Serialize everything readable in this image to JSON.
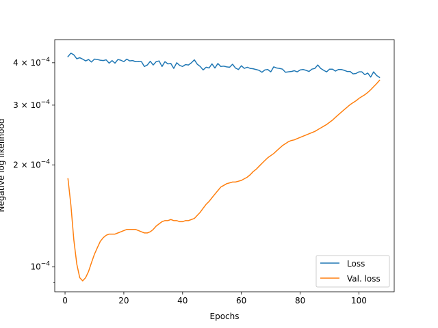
{
  "chart_data": {
    "type": "line",
    "xlabel": "Epochs",
    "ylabel": "Negative log likelihood",
    "xlim": [
      -3.5,
      112
    ],
    "ylim": [
      8.45e-05,
      0.000468
    ],
    "yscale": "log",
    "xticks": [
      0,
      20,
      40,
      60,
      80,
      100
    ],
    "yticks": [
      {
        "value": 0.0001,
        "mantissa": "10",
        "exponent": "−4",
        "prefix": ""
      },
      {
        "value": 0.0002,
        "mantissa": "10",
        "exponent": "−4",
        "prefix": "2 × "
      },
      {
        "value": 0.0003,
        "mantissa": "10",
        "exponent": "−4",
        "prefix": "3 × "
      },
      {
        "value": 0.0004,
        "mantissa": "10",
        "exponent": "−4",
        "prefix": "4 × "
      }
    ],
    "minor_yticks": [
      9e-05
    ],
    "grid": false,
    "legend_position": "lower-right",
    "series": [
      {
        "name": "Loss",
        "color": "#1f77b4",
        "x": [
          1,
          2,
          3,
          4,
          5,
          6,
          7,
          8,
          9,
          10,
          11,
          12,
          13,
          14,
          15,
          16,
          17,
          18,
          19,
          20,
          21,
          22,
          23,
          24,
          25,
          26,
          27,
          28,
          29,
          30,
          31,
          32,
          33,
          34,
          35,
          36,
          37,
          38,
          39,
          40,
          41,
          42,
          43,
          44,
          45,
          46,
          47,
          48,
          49,
          50,
          51,
          52,
          53,
          54,
          55,
          56,
          57,
          58,
          59,
          60,
          61,
          62,
          63,
          64,
          65,
          66,
          67,
          68,
          69,
          70,
          71,
          72,
          73,
          74,
          75,
          76,
          77,
          78,
          79,
          80,
          81,
          82,
          83,
          84,
          85,
          86,
          87,
          88,
          89,
          90,
          91,
          92,
          93,
          94,
          95,
          96,
          97,
          98,
          99,
          100,
          101,
          102,
          103,
          104,
          105,
          106,
          107
        ],
        "y": [
          0.000417,
          0.000427,
          0.000422,
          0.000411,
          0.000414,
          0.00041,
          0.000405,
          0.000409,
          0.000402,
          0.00041,
          0.000409,
          0.000407,
          0.000406,
          0.000408,
          0.000399,
          0.000406,
          0.000399,
          0.000409,
          0.000407,
          0.000403,
          0.00041,
          0.000405,
          0.000406,
          0.000403,
          0.000404,
          0.000403,
          0.00039,
          0.000394,
          0.000404,
          0.000394,
          0.000403,
          0.000405,
          0.00039,
          0.000403,
          0.000397,
          0.000398,
          0.000385,
          0.0004,
          0.000393,
          0.00039,
          0.000395,
          0.000394,
          0.0004,
          0.000408,
          0.000396,
          0.00039,
          0.000381,
          0.000388,
          0.000386,
          0.000397,
          0.000386,
          0.000398,
          0.00039,
          0.000391,
          0.000389,
          0.000388,
          0.000396,
          0.000386,
          0.000382,
          0.000392,
          0.000385,
          0.000388,
          0.000385,
          0.000384,
          0.000382,
          0.00038,
          0.000375,
          0.000381,
          0.000382,
          0.000376,
          0.000389,
          0.000386,
          0.000385,
          0.000383,
          0.000375,
          0.000376,
          0.000377,
          0.000379,
          0.000376,
          0.000381,
          0.000382,
          0.00038,
          0.000377,
          0.000383,
          0.000385,
          0.000394,
          0.000385,
          0.00038,
          0.000376,
          0.000383,
          0.000383,
          0.000378,
          0.000382,
          0.000382,
          0.00038,
          0.000377,
          0.000377,
          0.000371,
          0.000372,
          0.000376,
          0.000376,
          0.000369,
          0.000373,
          0.000363,
          0.000376,
          0.000367,
          0.000362
        ]
      },
      {
        "name": "Val. loss",
        "color": "#ff7f0e",
        "x": [
          1,
          2,
          3,
          4,
          5,
          6,
          7,
          8,
          9,
          10,
          11,
          12,
          13,
          14,
          15,
          16,
          17,
          18,
          19,
          20,
          21,
          22,
          23,
          24,
          25,
          26,
          27,
          28,
          29,
          30,
          31,
          32,
          33,
          34,
          35,
          36,
          37,
          38,
          39,
          40,
          41,
          42,
          43,
          44,
          45,
          46,
          47,
          48,
          49,
          50,
          51,
          52,
          53,
          54,
          55,
          56,
          57,
          58,
          59,
          60,
          61,
          62,
          63,
          64,
          65,
          66,
          67,
          68,
          69,
          70,
          71,
          72,
          73,
          74,
          75,
          76,
          77,
          78,
          79,
          80,
          81,
          82,
          83,
          84,
          85,
          86,
          87,
          88,
          89,
          90,
          91,
          92,
          93,
          94,
          95,
          96,
          97,
          98,
          99,
          100,
          101,
          102,
          103,
          104,
          105,
          106,
          107
        ],
        "y": [
          0.000182,
          0.000152,
          0.00012,
          0.000102,
          9.3e-05,
          9.1e-05,
          9.3e-05,
          9.7e-05,
          0.000103,
          0.000109,
          0.000114,
          0.000119,
          0.000122,
          0.000124,
          0.000125,
          0.000125,
          0.000125,
          0.000126,
          0.000127,
          0.000128,
          0.000129,
          0.000129,
          0.000129,
          0.000129,
          0.000128,
          0.000127,
          0.000126,
          0.000126,
          0.000127,
          0.000129,
          0.000132,
          0.000134,
          0.000136,
          0.000137,
          0.000137,
          0.000138,
          0.000137,
          0.000137,
          0.000136,
          0.000136,
          0.000137,
          0.000137,
          0.000138,
          0.000139,
          0.000142,
          0.000145,
          0.000149,
          0.000153,
          0.000156,
          0.00016,
          0.000164,
          0.000168,
          0.000172,
          0.000174,
          0.000176,
          0.000177,
          0.000178,
          0.000178,
          0.000179,
          0.00018,
          0.000182,
          0.000184,
          0.000187,
          0.000191,
          0.000194,
          0.000198,
          0.000202,
          0.000206,
          0.00021,
          0.000213,
          0.000216,
          0.00022,
          0.000224,
          0.000228,
          0.000231,
          0.000234,
          0.000236,
          0.000237,
          0.000239,
          0.000241,
          0.000243,
          0.000245,
          0.000247,
          0.000249,
          0.000251,
          0.000254,
          0.000257,
          0.00026,
          0.000263,
          0.000267,
          0.000271,
          0.000276,
          0.000281,
          0.000286,
          0.000291,
          0.000296,
          0.000301,
          0.000305,
          0.000309,
          0.000314,
          0.000318,
          0.000322,
          0.000327,
          0.000333,
          0.00034,
          0.000347,
          0.000355
        ]
      }
    ]
  }
}
